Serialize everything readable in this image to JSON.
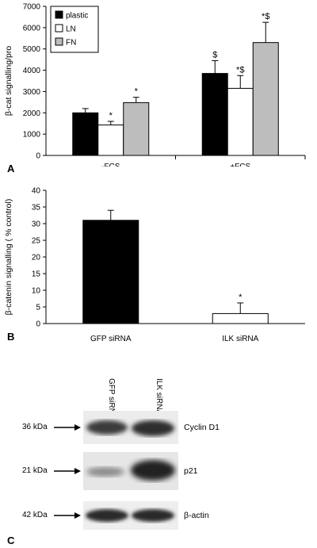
{
  "panels": {
    "a": {
      "letter": "A",
      "chart_data": {
        "type": "bar",
        "ylabel": "β-cat signalling/pro",
        "ylim": [
          0,
          7000
        ],
        "yticks": [
          0,
          1000,
          2000,
          3000,
          4000,
          5000,
          6000,
          7000
        ],
        "categories": [
          "-FCS",
          "+FCS"
        ],
        "legend_position": "top-left",
        "series": [
          {
            "name": "plastic",
            "color": "#000000",
            "values": [
              2000,
              3850
            ],
            "errors": [
              200,
              600
            ],
            "annotations": [
              "",
              "$"
            ]
          },
          {
            "name": "LN",
            "color": "#ffffff",
            "values": [
              1430,
              3150
            ],
            "errors": [
              170,
              600
            ],
            "annotations": [
              "*",
              "*$"
            ]
          },
          {
            "name": "FN",
            "color": "#bdbdbd",
            "values": [
              2480,
              5300
            ],
            "errors": [
              250,
              950
            ],
            "annotations": [
              "*",
              "*$"
            ]
          }
        ]
      }
    },
    "b": {
      "letter": "B",
      "chart_data": {
        "type": "bar",
        "ylabel": "β-catenin signalling ( % control)",
        "ylim": [
          0,
          40
        ],
        "yticks": [
          0,
          5,
          10,
          15,
          20,
          25,
          30,
          35,
          40
        ],
        "categories": [
          "GFP siRNA",
          "ILK siRNA"
        ],
        "series": [
          {
            "values": [
              31,
              3
            ],
            "errors": [
              3,
              3.2
            ],
            "colors": [
              "#000000",
              "#ffffff"
            ],
            "annotations": [
              "",
              "*"
            ]
          }
        ]
      }
    },
    "c": {
      "letter": "C",
      "lanes": [
        "GFP siRNA",
        "ILK siRNA"
      ],
      "rows": [
        {
          "size": "36 kDa",
          "protein": "Cyclin D1"
        },
        {
          "size": "21 kDa",
          "protein": "p21"
        },
        {
          "size": "42 kDa",
          "protein": "β-actin"
        }
      ]
    }
  }
}
